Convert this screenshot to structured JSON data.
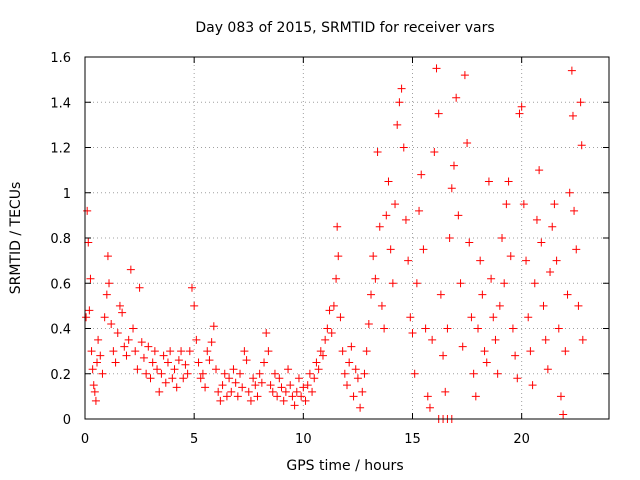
{
  "chart_data": {
    "type": "scatter",
    "title": "Day 083 of 2015, SRMTID for receiver vars",
    "xlabel": "GPS time / hours",
    "ylabel": "SRMTID / TECUs",
    "xlim": [
      0,
      24
    ],
    "ylim": [
      0,
      1.6
    ],
    "xticks": [
      0,
      5,
      10,
      15,
      20
    ],
    "xtick_labels": [
      "0",
      "5",
      "10",
      "15",
      "20"
    ],
    "yticks": [
      0,
      0.2,
      0.4,
      0.6,
      0.8,
      1,
      1.2,
      1.4,
      1.6
    ],
    "ytick_labels": [
      "0",
      "0.2",
      "0.4",
      "0.6",
      "0.8",
      "1",
      "1.2",
      "1.4",
      "1.6"
    ],
    "grid": true,
    "marker": "+",
    "series": [
      {
        "name": "SRMTID",
        "color": "#ff0000",
        "points": [
          [
            0.05,
            0.45
          ],
          [
            0.1,
            0.92
          ],
          [
            0.15,
            0.78
          ],
          [
            0.2,
            0.48
          ],
          [
            0.25,
            0.62
          ],
          [
            0.3,
            0.3
          ],
          [
            0.35,
            0.22
          ],
          [
            0.4,
            0.15
          ],
          [
            0.45,
            0.12
          ],
          [
            0.5,
            0.08
          ],
          [
            0.55,
            0.25
          ],
          [
            0.6,
            0.35
          ],
          [
            0.7,
            0.28
          ],
          [
            0.8,
            0.2
          ],
          [
            0.9,
            0.45
          ],
          [
            1.0,
            0.55
          ],
          [
            1.05,
            0.72
          ],
          [
            1.1,
            0.6
          ],
          [
            1.2,
            0.42
          ],
          [
            1.3,
            0.3
          ],
          [
            1.4,
            0.25
          ],
          [
            1.5,
            0.38
          ],
          [
            1.6,
            0.5
          ],
          [
            1.7,
            0.47
          ],
          [
            1.8,
            0.32
          ],
          [
            1.9,
            0.28
          ],
          [
            2.0,
            0.35
          ],
          [
            2.1,
            0.66
          ],
          [
            2.2,
            0.4
          ],
          [
            2.3,
            0.3
          ],
          [
            2.4,
            0.22
          ],
          [
            2.5,
            0.58
          ],
          [
            2.6,
            0.34
          ],
          [
            2.7,
            0.27
          ],
          [
            2.8,
            0.2
          ],
          [
            2.9,
            0.32
          ],
          [
            3.0,
            0.18
          ],
          [
            3.1,
            0.25
          ],
          [
            3.2,
            0.3
          ],
          [
            3.3,
            0.22
          ],
          [
            3.4,
            0.12
          ],
          [
            3.5,
            0.2
          ],
          [
            3.6,
            0.28
          ],
          [
            3.7,
            0.16
          ],
          [
            3.8,
            0.25
          ],
          [
            3.9,
            0.3
          ],
          [
            4.0,
            0.18
          ],
          [
            4.1,
            0.22
          ],
          [
            4.2,
            0.14
          ],
          [
            4.3,
            0.26
          ],
          [
            4.4,
            0.3
          ],
          [
            4.5,
            0.18
          ],
          [
            4.6,
            0.24
          ],
          [
            4.7,
            0.2
          ],
          [
            4.8,
            0.3
          ],
          [
            4.9,
            0.58
          ],
          [
            5.0,
            0.5
          ],
          [
            5.1,
            0.35
          ],
          [
            5.2,
            0.25
          ],
          [
            5.3,
            0.18
          ],
          [
            5.4,
            0.2
          ],
          [
            5.5,
            0.14
          ],
          [
            5.6,
            0.3
          ],
          [
            5.7,
            0.26
          ],
          [
            5.8,
            0.34
          ],
          [
            5.9,
            0.41
          ],
          [
            6.0,
            0.22
          ],
          [
            6.1,
            0.12
          ],
          [
            6.2,
            0.08
          ],
          [
            6.3,
            0.15
          ],
          [
            6.4,
            0.2
          ],
          [
            6.5,
            0.1
          ],
          [
            6.6,
            0.18
          ],
          [
            6.7,
            0.12
          ],
          [
            6.8,
            0.22
          ],
          [
            6.9,
            0.16
          ],
          [
            7.0,
            0.1
          ],
          [
            7.1,
            0.2
          ],
          [
            7.2,
            0.14
          ],
          [
            7.3,
            0.3
          ],
          [
            7.4,
            0.26
          ],
          [
            7.5,
            0.12
          ],
          [
            7.6,
            0.08
          ],
          [
            7.7,
            0.18
          ],
          [
            7.8,
            0.15
          ],
          [
            7.9,
            0.1
          ],
          [
            8.0,
            0.2
          ],
          [
            8.1,
            0.16
          ],
          [
            8.2,
            0.25
          ],
          [
            8.3,
            0.38
          ],
          [
            8.4,
            0.3
          ],
          [
            8.5,
            0.15
          ],
          [
            8.6,
            0.12
          ],
          [
            8.7,
            0.2
          ],
          [
            8.8,
            0.1
          ],
          [
            8.9,
            0.18
          ],
          [
            9.0,
            0.14
          ],
          [
            9.1,
            0.08
          ],
          [
            9.2,
            0.12
          ],
          [
            9.3,
            0.22
          ],
          [
            9.4,
            0.15
          ],
          [
            9.5,
            0.1
          ],
          [
            9.6,
            0.06
          ],
          [
            9.7,
            0.12
          ],
          [
            9.8,
            0.18
          ],
          [
            9.9,
            0.1
          ],
          [
            10.0,
            0.14
          ],
          [
            10.1,
            0.08
          ],
          [
            10.2,
            0.15
          ],
          [
            10.3,
            0.2
          ],
          [
            10.4,
            0.12
          ],
          [
            10.5,
            0.18
          ],
          [
            10.6,
            0.25
          ],
          [
            10.7,
            0.22
          ],
          [
            10.8,
            0.3
          ],
          [
            10.9,
            0.28
          ],
          [
            11.0,
            0.35
          ],
          [
            11.1,
            0.4
          ],
          [
            11.2,
            0.48
          ],
          [
            11.3,
            0.38
          ],
          [
            11.4,
            0.5
          ],
          [
            11.5,
            0.62
          ],
          [
            11.55,
            0.85
          ],
          [
            11.6,
            0.72
          ],
          [
            11.7,
            0.45
          ],
          [
            11.8,
            0.3
          ],
          [
            11.9,
            0.2
          ],
          [
            12.0,
            0.15
          ],
          [
            12.1,
            0.25
          ],
          [
            12.2,
            0.32
          ],
          [
            12.3,
            0.1
          ],
          [
            12.4,
            0.22
          ],
          [
            12.5,
            0.18
          ],
          [
            12.6,
            0.05
          ],
          [
            12.7,
            0.12
          ],
          [
            12.8,
            0.2
          ],
          [
            12.9,
            0.3
          ],
          [
            13.0,
            0.42
          ],
          [
            13.1,
            0.55
          ],
          [
            13.2,
            0.72
          ],
          [
            13.3,
            0.62
          ],
          [
            13.4,
            1.18
          ],
          [
            13.5,
            0.85
          ],
          [
            13.6,
            0.5
          ],
          [
            13.7,
            0.4
          ],
          [
            13.8,
            0.9
          ],
          [
            13.9,
            1.05
          ],
          [
            14.0,
            0.75
          ],
          [
            14.1,
            0.6
          ],
          [
            14.2,
            0.95
          ],
          [
            14.3,
            1.3
          ],
          [
            14.4,
            1.4
          ],
          [
            14.5,
            1.46
          ],
          [
            14.6,
            1.2
          ],
          [
            14.7,
            0.88
          ],
          [
            14.8,
            0.7
          ],
          [
            14.9,
            0.45
          ],
          [
            15.0,
            0.38
          ],
          [
            15.1,
            0.2
          ],
          [
            15.2,
            0.6
          ],
          [
            15.3,
            0.92
          ],
          [
            15.4,
            1.08
          ],
          [
            15.5,
            0.75
          ],
          [
            15.6,
            0.4
          ],
          [
            15.7,
            0.1
          ],
          [
            15.8,
            0.05
          ],
          [
            15.9,
            0.35
          ],
          [
            16.0,
            1.18
          ],
          [
            16.1,
            1.55
          ],
          [
            16.2,
            1.35
          ],
          [
            16.3,
            0.55
          ],
          [
            16.4,
            0.28
          ],
          [
            16.5,
            0.12
          ],
          [
            16.6,
            0.4
          ],
          [
            16.7,
            0.8
          ],
          [
            16.8,
            1.02
          ],
          [
            16.9,
            1.12
          ],
          [
            17.0,
            1.42
          ],
          [
            17.1,
            0.9
          ],
          [
            17.2,
            0.6
          ],
          [
            17.3,
            0.32
          ],
          [
            17.4,
            1.52
          ],
          [
            17.5,
            1.22
          ],
          [
            17.6,
            0.78
          ],
          [
            17.7,
            0.45
          ],
          [
            17.8,
            0.2
          ],
          [
            17.9,
            0.1
          ],
          [
            18.0,
            0.4
          ],
          [
            18.1,
            0.7
          ],
          [
            18.2,
            0.55
          ],
          [
            18.3,
            0.3
          ],
          [
            18.4,
            0.25
          ],
          [
            18.5,
            1.05
          ],
          [
            18.6,
            0.62
          ],
          [
            18.7,
            0.45
          ],
          [
            18.8,
            0.35
          ],
          [
            18.9,
            0.2
          ],
          [
            19.0,
            0.5
          ],
          [
            19.1,
            0.8
          ],
          [
            19.2,
            0.6
          ],
          [
            19.3,
            0.95
          ],
          [
            19.4,
            1.05
          ],
          [
            19.5,
            0.72
          ],
          [
            19.6,
            0.4
          ],
          [
            19.7,
            0.28
          ],
          [
            19.8,
            0.18
          ],
          [
            19.9,
            1.35
          ],
          [
            20.0,
            1.38
          ],
          [
            20.1,
            0.95
          ],
          [
            20.2,
            0.7
          ],
          [
            20.3,
            0.45
          ],
          [
            20.4,
            0.3
          ],
          [
            20.5,
            0.15
          ],
          [
            20.6,
            0.6
          ],
          [
            20.7,
            0.88
          ],
          [
            20.8,
            1.1
          ],
          [
            20.9,
            0.78
          ],
          [
            21.0,
            0.5
          ],
          [
            21.1,
            0.35
          ],
          [
            21.2,
            0.22
          ],
          [
            21.3,
            0.65
          ],
          [
            21.4,
            0.85
          ],
          [
            21.5,
            0.95
          ],
          [
            21.6,
            0.7
          ],
          [
            21.7,
            0.4
          ],
          [
            21.8,
            0.1
          ],
          [
            21.9,
            0.02
          ],
          [
            22.0,
            0.3
          ],
          [
            22.1,
            0.55
          ],
          [
            22.2,
            1.0
          ],
          [
            22.3,
            1.54
          ],
          [
            22.35,
            1.34
          ],
          [
            22.4,
            0.92
          ],
          [
            22.5,
            0.75
          ],
          [
            22.6,
            0.5
          ],
          [
            22.7,
            1.4
          ],
          [
            22.75,
            1.21
          ],
          [
            22.8,
            0.35
          ],
          [
            16.2,
            0
          ],
          [
            16.4,
            0
          ],
          [
            16.6,
            0
          ],
          [
            16.8,
            0
          ]
        ]
      }
    ]
  }
}
